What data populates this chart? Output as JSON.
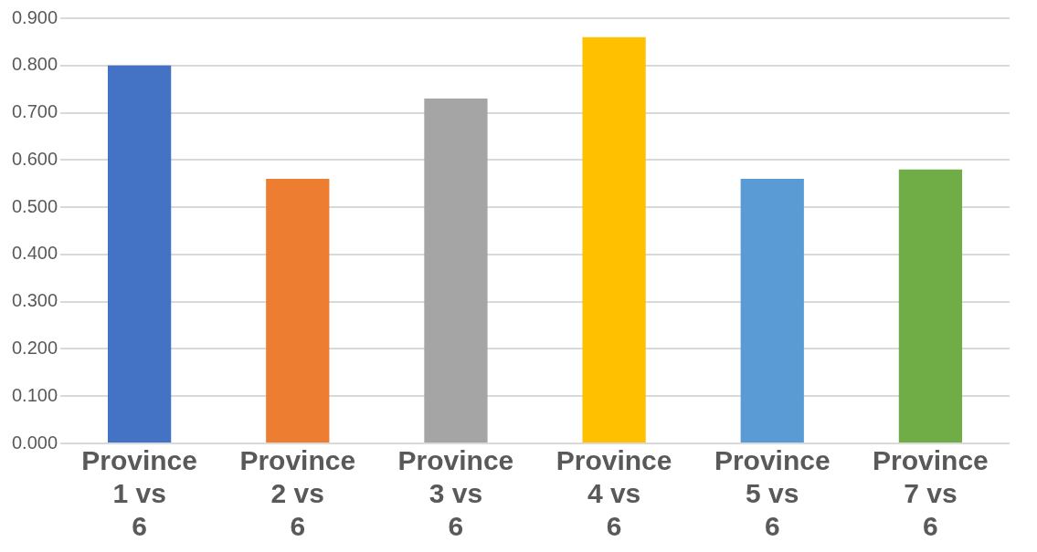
{
  "chart_data": {
    "type": "bar",
    "categories": [
      "Province 1 vs 6",
      "Province 2 vs 6",
      "Province 3 vs 6",
      "Province 4 vs 6",
      "Province 5 vs 6",
      "Province 7 vs 6"
    ],
    "values": [
      0.8,
      0.56,
      0.73,
      0.86,
      0.56,
      0.58
    ],
    "colors": [
      "#4472c4",
      "#ed7d31",
      "#a5a5a5",
      "#ffc000",
      "#5b9bd5",
      "#70ad47"
    ],
    "ylim": [
      0,
      0.9
    ],
    "yticks": [
      {
        "value": 0,
        "label": "0.000"
      },
      {
        "value": 0.1,
        "label": "0.100"
      },
      {
        "value": 0.2,
        "label": "0.200"
      },
      {
        "value": 0.3,
        "label": "0.300"
      },
      {
        "value": 0.4,
        "label": "0.400"
      },
      {
        "value": 0.5,
        "label": "0.500"
      },
      {
        "value": 0.6,
        "label": "0.600"
      },
      {
        "value": 0.7,
        "label": "0.700"
      },
      {
        "value": 0.8,
        "label": "0.800"
      },
      {
        "value": 0.9,
        "label": "0.900"
      }
    ],
    "grid": true
  }
}
